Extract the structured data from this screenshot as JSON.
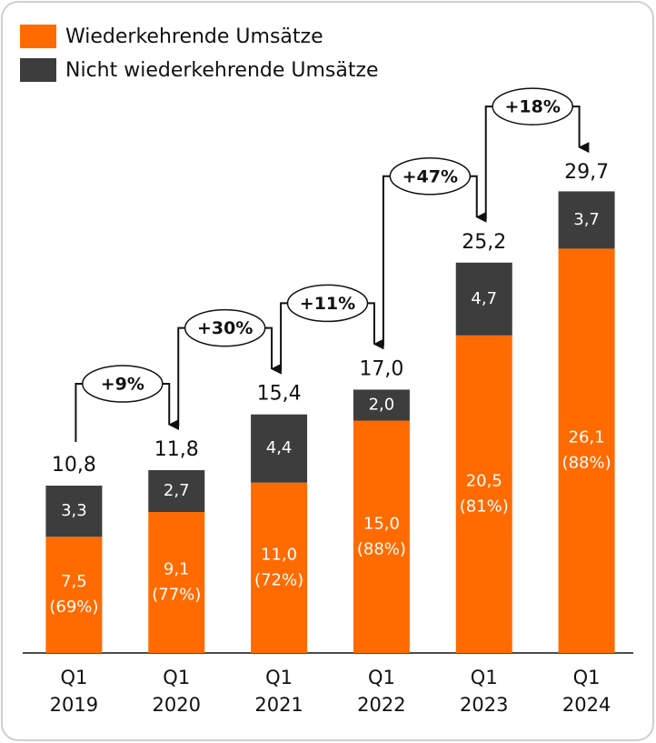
{
  "chart_data": {
    "type": "stacked-bar",
    "categories": [
      "Q1\n2019",
      "Q1\n2020",
      "Q1\n2021",
      "Q1\n2022",
      "Q1\n2023",
      "Q1\n2024"
    ],
    "series": [
      {
        "name": "Wiederkehrende Umsätze",
        "color": "#ff6b00",
        "values": [
          7.5,
          9.1,
          11.0,
          15.0,
          20.5,
          26.1
        ],
        "value_labels": [
          "7,5",
          "9,1",
          "11,0",
          "15,0",
          "20,5",
          "26,1"
        ],
        "share_labels": [
          "(69%)",
          "(77%)",
          "(72%)",
          "(88%)",
          "(81%)",
          "(88%)"
        ]
      },
      {
        "name": "Nicht wiederkehrende Umsätze",
        "color": "#3d3d3d",
        "values": [
          3.3,
          2.7,
          4.4,
          2.0,
          4.7,
          3.7
        ],
        "value_labels": [
          "3,3",
          "2,7",
          "4,4",
          "2,0",
          "4,7",
          "3,7"
        ]
      }
    ],
    "totals": [
      10.8,
      11.8,
      15.4,
      17.0,
      25.2,
      29.7
    ],
    "total_labels": [
      "10,8",
      "11,8",
      "15,4",
      "17,0",
      "25,2",
      "29,7"
    ],
    "growth_labels": [
      "+9%",
      "+30%",
      "+11%",
      "+47%",
      "+18%"
    ],
    "ylim": [
      0,
      30
    ],
    "legend": "top-left"
  }
}
